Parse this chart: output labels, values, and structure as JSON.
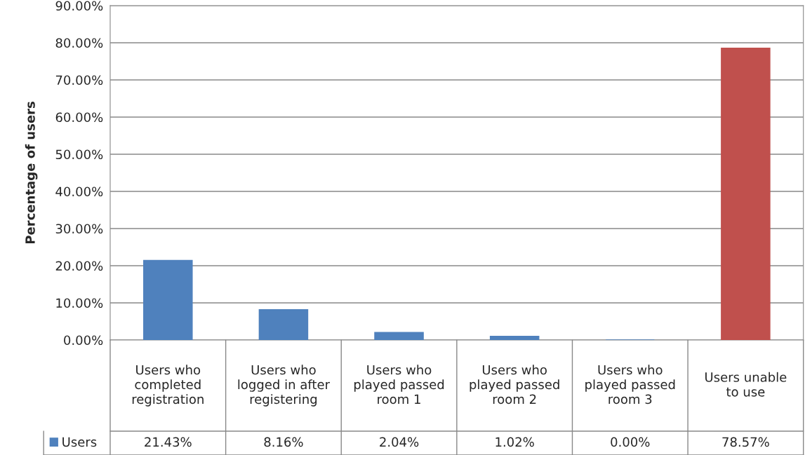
{
  "chart_data": {
    "type": "bar",
    "ylabel": "Percentage of users",
    "categories": [
      "Users who completed registration",
      "Users who logged in after registering",
      "Users who played passed room 1",
      "Users who played passed room 2",
      "Users who played passed room 3",
      "Users unable to use"
    ],
    "series": [
      {
        "name": "Users",
        "color": "#4f81bd",
        "colors": [
          "#4f81bd",
          "#4f81bd",
          "#4f81bd",
          "#4f81bd",
          "#4f81bd",
          "#c0504d"
        ],
        "values": [
          21.43,
          8.16,
          2.04,
          1.02,
          0.0,
          78.57
        ],
        "value_labels": [
          "21.43%",
          "8.16%",
          "2.04%",
          "1.02%",
          "0.00%",
          "78.57%"
        ]
      }
    ],
    "ylim": [
      0,
      90
    ],
    "yticks": [
      {
        "value": 0,
        "label": "0.00%"
      },
      {
        "value": 10,
        "label": "10.00%"
      },
      {
        "value": 20,
        "label": "20.00%"
      },
      {
        "value": 30,
        "label": "30.00%"
      },
      {
        "value": 40,
        "label": "40.00%"
      },
      {
        "value": 50,
        "label": "50.00%"
      },
      {
        "value": 60,
        "label": "60.00%"
      },
      {
        "value": 70,
        "label": "70.00%"
      },
      {
        "value": 80,
        "label": "80.00%"
      },
      {
        "value": 90,
        "label": "90.00%"
      }
    ],
    "grid": "y",
    "legend": "bottom left"
  }
}
